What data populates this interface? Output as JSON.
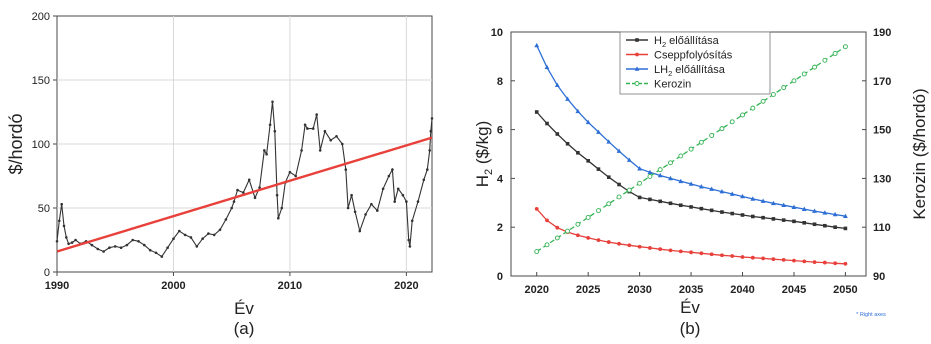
{
  "chart_data": [
    {
      "type": "line",
      "panel_label": "(a)",
      "xlabel": "Év",
      "ylabel": "$/hordó",
      "xlim": [
        1990,
        2022.2
      ],
      "ylim": [
        0,
        200
      ],
      "x_ticks": [
        1990,
        2000,
        2010,
        2020
      ],
      "y_ticks": [
        0,
        50,
        100,
        150,
        200
      ],
      "grid": true,
      "series": [
        {
          "color": "#333333",
          "marker": "dot",
          "points": [
            [
              1990.0,
              24
            ],
            [
              1990.2,
              40
            ],
            [
              1990.4,
              53
            ],
            [
              1990.6,
              36
            ],
            [
              1990.8,
              27
            ],
            [
              1991.0,
              22
            ],
            [
              1991.3,
              23
            ],
            [
              1991.6,
              25
            ],
            [
              1992.0,
              22
            ],
            [
              1992.5,
              24
            ],
            [
              1993.0,
              21
            ],
            [
              1993.5,
              18
            ],
            [
              1994.0,
              16
            ],
            [
              1994.5,
              19
            ],
            [
              1995.0,
              20
            ],
            [
              1995.5,
              19
            ],
            [
              1996.0,
              21
            ],
            [
              1996.5,
              25
            ],
            [
              1997.0,
              24
            ],
            [
              1997.5,
              21
            ],
            [
              1998.0,
              17
            ],
            [
              1998.5,
              15
            ],
            [
              1999.0,
              12
            ],
            [
              1999.5,
              19
            ],
            [
              2000.0,
              26
            ],
            [
              2000.5,
              32
            ],
            [
              2001.0,
              29
            ],
            [
              2001.5,
              27
            ],
            [
              2002.0,
              20
            ],
            [
              2002.5,
              26
            ],
            [
              2003.0,
              30
            ],
            [
              2003.5,
              29
            ],
            [
              2004.0,
              33
            ],
            [
              2004.5,
              41
            ],
            [
              2005.0,
              50
            ],
            [
              2005.2,
              55
            ],
            [
              2005.5,
              64
            ],
            [
              2006.0,
              62
            ],
            [
              2006.5,
              72
            ],
            [
              2007.0,
              58
            ],
            [
              2007.4,
              66
            ],
            [
              2007.8,
              95
            ],
            [
              2008.0,
              92
            ],
            [
              2008.3,
              115
            ],
            [
              2008.5,
              133
            ],
            [
              2008.7,
              110
            ],
            [
              2008.9,
              60
            ],
            [
              2009.0,
              42
            ],
            [
              2009.3,
              50
            ],
            [
              2009.6,
              70
            ],
            [
              2010.0,
              78
            ],
            [
              2010.5,
              75
            ],
            [
              2011.0,
              95
            ],
            [
              2011.3,
              115
            ],
            [
              2011.5,
              112
            ],
            [
              2012.0,
              112
            ],
            [
              2012.3,
              123
            ],
            [
              2012.6,
              95
            ],
            [
              2013.0,
              110
            ],
            [
              2013.5,
              103
            ],
            [
              2014.0,
              106
            ],
            [
              2014.5,
              100
            ],
            [
              2014.8,
              80
            ],
            [
              2015.0,
              50
            ],
            [
              2015.3,
              60
            ],
            [
              2015.6,
              47
            ],
            [
              2016.0,
              32
            ],
            [
              2016.5,
              45
            ],
            [
              2017.0,
              53
            ],
            [
              2017.5,
              48
            ],
            [
              2018.0,
              65
            ],
            [
              2018.5,
              75
            ],
            [
              2018.8,
              80
            ],
            [
              2019.0,
              55
            ],
            [
              2019.3,
              65
            ],
            [
              2019.7,
              60
            ],
            [
              2020.0,
              55
            ],
            [
              2020.2,
              25
            ],
            [
              2020.3,
              20
            ],
            [
              2020.5,
              40
            ],
            [
              2021.0,
              55
            ],
            [
              2021.5,
              72
            ],
            [
              2021.8,
              80
            ],
            [
              2022.0,
              95
            ],
            [
              2022.1,
              110
            ],
            [
              2022.2,
              120
            ]
          ]
        },
        {
          "color": "#e8403a",
          "marker": "none",
          "style": "trend",
          "points": [
            [
              1990,
              16
            ],
            [
              2022.2,
              105
            ]
          ]
        }
      ]
    },
    {
      "type": "line",
      "panel_label": "(b)",
      "xlabel": "Év",
      "ylabel": "H₂ ($/kg)",
      "y2label": "Kerozin ($/hordó)",
      "xlim": [
        2017.5,
        2052
      ],
      "ylim": [
        0,
        10
      ],
      "y2lim": [
        90,
        190
      ],
      "x_ticks": [
        2020,
        2025,
        2030,
        2035,
        2040,
        2045,
        2050
      ],
      "y_ticks": [
        0,
        2,
        4,
        6,
        8,
        10
      ],
      "y2_ticks": [
        90,
        110,
        130,
        150,
        170,
        190
      ],
      "x": [
        2020,
        2021,
        2022,
        2023,
        2024,
        2025,
        2026,
        2027,
        2028,
        2029,
        2030,
        2031,
        2032,
        2033,
        2034,
        2035,
        2036,
        2037,
        2038,
        2039,
        2040,
        2041,
        2042,
        2043,
        2044,
        2045,
        2046,
        2047,
        2048,
        2049,
        2050
      ],
      "legend_position": "top-center",
      "grid": false,
      "annotation": "* Right axes",
      "series": [
        {
          "name_parts": [
            "H",
            "2",
            " előállítása"
          ],
          "color": "#333333",
          "marker": "square",
          "axis": "left",
          "values": [
            6.72,
            6.25,
            5.82,
            5.42,
            5.05,
            4.72,
            4.38,
            4.05,
            3.75,
            3.46,
            3.22,
            3.14,
            3.06,
            2.98,
            2.9,
            2.83,
            2.76,
            2.69,
            2.62,
            2.56,
            2.5,
            2.44,
            2.39,
            2.34,
            2.29,
            2.24,
            2.18,
            2.12,
            2.06,
            2.0,
            1.95
          ]
        },
        {
          "name_parts": [
            "Cseppfolyósítás"
          ],
          "color": "#e8403a",
          "marker": "dot",
          "axis": "left",
          "values": [
            2.75,
            2.28,
            1.98,
            1.8,
            1.67,
            1.56,
            1.47,
            1.39,
            1.32,
            1.26,
            1.2,
            1.15,
            1.1,
            1.05,
            1.01,
            0.97,
            0.93,
            0.89,
            0.85,
            0.82,
            0.78,
            0.75,
            0.72,
            0.69,
            0.66,
            0.63,
            0.6,
            0.57,
            0.55,
            0.52,
            0.5
          ]
        },
        {
          "name_parts": [
            "LH",
            "2",
            " előállítása"
          ],
          "color": "#2e6fd6",
          "marker": "triangle",
          "axis": "left",
          "values": [
            9.45,
            8.55,
            7.82,
            7.25,
            6.75,
            6.3,
            5.9,
            5.5,
            5.12,
            4.75,
            4.4,
            4.25,
            4.12,
            4.0,
            3.88,
            3.77,
            3.66,
            3.56,
            3.46,
            3.36,
            3.26,
            3.16,
            3.07,
            2.98,
            2.9,
            2.82,
            2.74,
            2.66,
            2.59,
            2.52,
            2.45
          ]
        },
        {
          "name_parts": [
            "Kerozin"
          ],
          "color": "#34b354",
          "marker": "circle-open",
          "axis": "right",
          "dashed": true,
          "values": [
            100.0,
            102.8,
            105.6,
            108.4,
            111.2,
            114.0,
            116.8,
            119.6,
            122.4,
            125.2,
            128.0,
            130.8,
            133.6,
            136.4,
            139.2,
            142.0,
            144.8,
            147.6,
            150.4,
            153.2,
            156.0,
            158.8,
            161.6,
            164.4,
            167.2,
            170.0,
            172.8,
            175.6,
            178.4,
            181.2,
            184.0
          ]
        }
      ]
    }
  ]
}
